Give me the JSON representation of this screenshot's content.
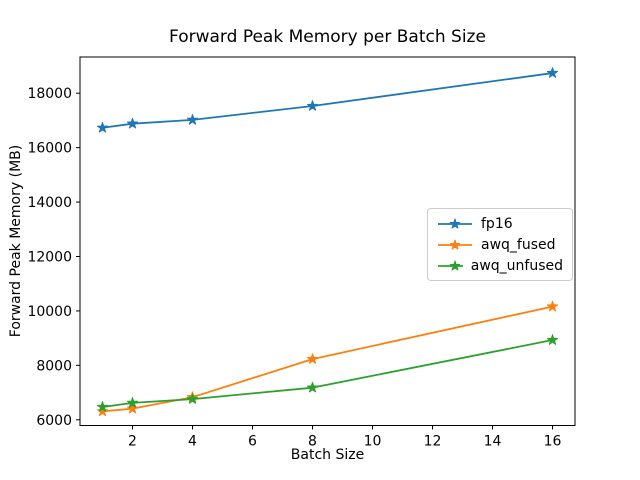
{
  "figure": {
    "background": "#ffffff",
    "axis_color": "#000000"
  },
  "chart_data": {
    "type": "line",
    "title": "Forward Peak Memory per Batch Size",
    "xlabel": "Batch Size",
    "ylabel": "Forward Peak Memory (MB)",
    "x": [
      1,
      2,
      4,
      8,
      16
    ],
    "series": [
      {
        "name": "fp16",
        "color": "#1f77b4",
        "marker": "star",
        "values": [
          16730,
          16880,
          17020,
          17530,
          18740
        ]
      },
      {
        "name": "awq_fused",
        "color": "#ff7f0e",
        "marker": "star",
        "values": [
          6310,
          6410,
          6830,
          8230,
          10160
        ]
      },
      {
        "name": "awq_unfused",
        "color": "#2ca02c",
        "marker": "star",
        "values": [
          6470,
          6620,
          6760,
          7180,
          8930
        ]
      }
    ],
    "xticks": [
      2,
      4,
      6,
      8,
      10,
      12,
      14,
      16
    ],
    "yticks": [
      6000,
      8000,
      10000,
      12000,
      14000,
      16000,
      18000
    ],
    "xlim": [
      0.25,
      16.75
    ],
    "ylim": [
      5790,
      19330
    ],
    "grid": false,
    "legend": {
      "position": "center-right",
      "border_color": "#cccccc"
    }
  }
}
